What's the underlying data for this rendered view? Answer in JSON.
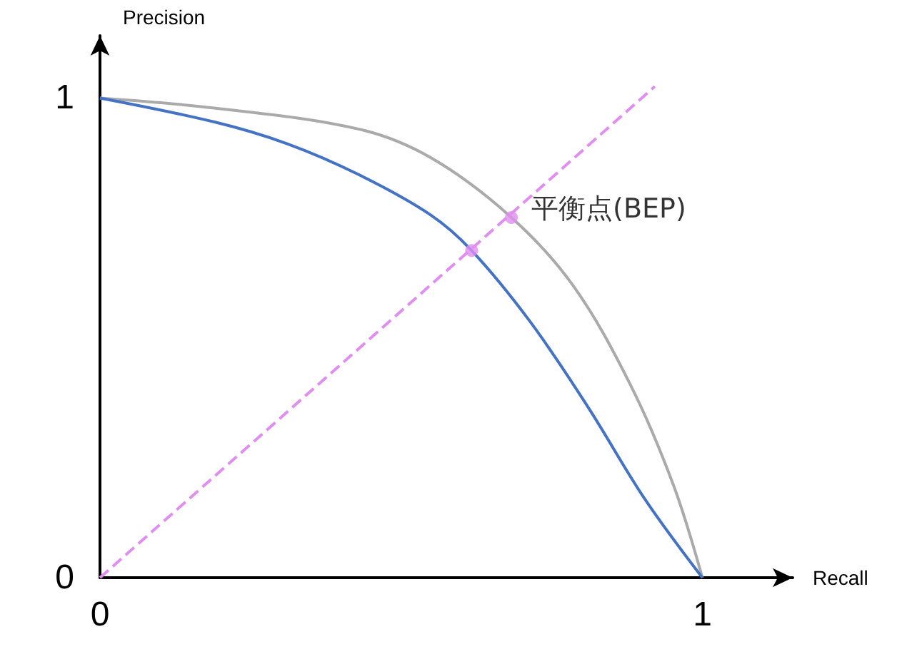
{
  "chart_data": {
    "type": "line",
    "xlabel": "Recall",
    "ylabel": "Precision",
    "xlim": [
      0,
      1.15
    ],
    "ylim": [
      0,
      1.13
    ],
    "xticks": [
      0,
      1
    ],
    "yticks": [
      0,
      1
    ],
    "grid": false,
    "marker": "none",
    "series": [
      {
        "color": "#aaaaaa",
        "x": [
          0,
          0.19,
          0.43,
          0.55,
          0.683,
          0.786,
          0.881,
          0.952,
          1
        ],
        "values": [
          1,
          0.979,
          0.935,
          0.875,
          0.751,
          0.608,
          0.401,
          0.193,
          0
        ]
      },
      {
        "color": "#4472c4",
        "x": [
          0,
          0.19,
          0.31,
          0.43,
          0.548,
          0.617,
          0.714,
          0.81,
          0.905,
          1
        ],
        "values": [
          1,
          0.95,
          0.905,
          0.84,
          0.757,
          0.682,
          0.534,
          0.356,
          0.163,
          0
        ]
      },
      {
        "color": "#e08ef0",
        "line_style": "dashed",
        "x": [
          0,
          0.921
        ],
        "values": [
          0,
          1.024
        ]
      },
      {
        "type": "scatter",
        "marker": "circle",
        "color": "#e08ef0",
        "x": [
          0.683,
          0.617
        ],
        "values": [
          0.751,
          0.682
        ]
      }
    ],
    "annotations": [
      {
        "text": "平衡点(BEP)",
        "x": 0.683,
        "y": 0.751
      }
    ]
  }
}
